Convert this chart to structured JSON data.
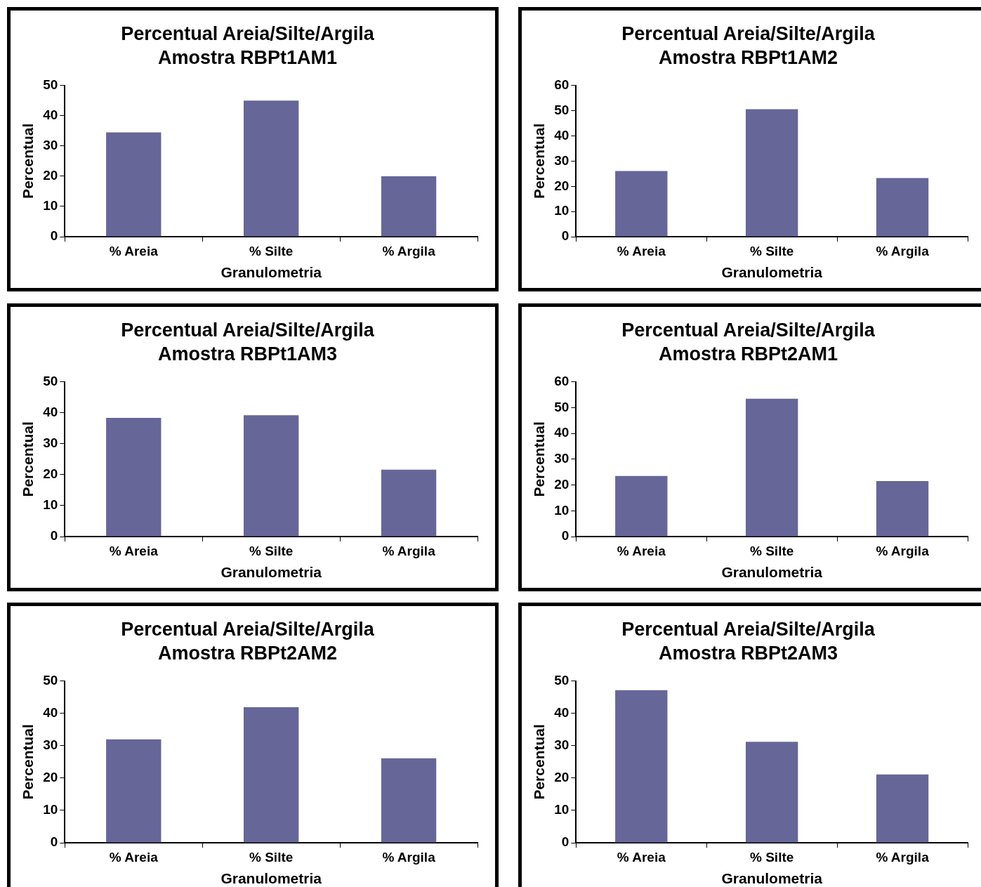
{
  "chart_data": [
    {
      "type": "bar",
      "title": "Percentual Areia/Silte/Argila",
      "subtitle": "Amostra RBPt1AM1",
      "xlabel": "Granulometria",
      "ylabel": "Percentual",
      "categories": [
        "% Areia",
        "% Silte",
        "% Argila"
      ],
      "values": [
        34.5,
        45,
        20
      ],
      "color": "#666699",
      "ylim": [
        0,
        50
      ],
      "yticks": [
        0,
        10,
        20,
        30,
        40,
        50
      ],
      "grid": false,
      "legend": false
    },
    {
      "type": "bar",
      "title": "Percentual Areia/Silte/Argila",
      "subtitle": "Amostra RBPt1AM2",
      "xlabel": "Granulometria",
      "ylabel": "Percentual",
      "categories": [
        "% Areia",
        "% Silte",
        "% Argila"
      ],
      "values": [
        26.1,
        50.6,
        23.3
      ],
      "color": "#666699",
      "ylim": [
        0,
        60
      ],
      "yticks": [
        0,
        10,
        20,
        30,
        40,
        50,
        60
      ],
      "grid": false,
      "legend": false
    },
    {
      "type": "bar",
      "title": "Percentual Areia/Silte/Argila",
      "subtitle": "Amostra RBPt1AM3",
      "xlabel": "Granulometria",
      "ylabel": "Percentual",
      "categories": [
        "% Areia",
        "% Silte",
        "% Argila"
      ],
      "values": [
        38.4,
        39.2,
        21.6
      ],
      "color": "#666699",
      "ylim": [
        0,
        50
      ],
      "yticks": [
        0,
        10,
        20,
        30,
        40,
        50
      ],
      "grid": false,
      "legend": false
    },
    {
      "type": "bar",
      "title": "Percentual Areia/Silte/Argila",
      "subtitle": "Amostra RBPt2AM1",
      "xlabel": "Granulometria",
      "ylabel": "Percentual",
      "categories": [
        "% Areia",
        "% Silte",
        "% Argila"
      ],
      "values": [
        23.5,
        53.5,
        21.5
      ],
      "color": "#666699",
      "ylim": [
        0,
        60
      ],
      "yticks": [
        0,
        10,
        20,
        30,
        40,
        50,
        60
      ],
      "grid": false,
      "legend": false
    },
    {
      "type": "bar",
      "title": "Percentual Areia/Silte/Argila",
      "subtitle": "Amostra RBPt2AM2",
      "xlabel": "Granulometria",
      "ylabel": "Percentual",
      "categories": [
        "% Areia",
        "% Silte",
        "% Argila"
      ],
      "values": [
        32,
        41.9,
        26.1
      ],
      "color": "#666699",
      "ylim": [
        0,
        50
      ],
      "yticks": [
        0,
        10,
        20,
        30,
        40,
        50
      ],
      "grid": false,
      "legend": false
    },
    {
      "type": "bar",
      "title": "Percentual Areia/Silte/Argila",
      "subtitle": "Amostra RBPt2AM3",
      "xlabel": "Granulometria",
      "ylabel": "Percentual",
      "categories": [
        "% Areia",
        "% Silte",
        "% Argila"
      ],
      "values": [
        47.2,
        31.2,
        21.1
      ],
      "color": "#666699",
      "ylim": [
        0,
        50
      ],
      "yticks": [
        0,
        10,
        20,
        30,
        40,
        50
      ],
      "grid": false,
      "legend": false
    }
  ]
}
